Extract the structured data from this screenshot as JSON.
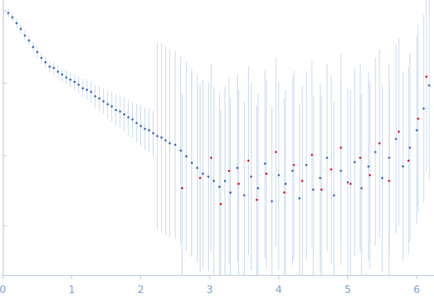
{
  "chart_data": {
    "type": "scatter",
    "title": "",
    "xlabel": "",
    "ylabel": "",
    "xlim": [
      0,
      6.25
    ],
    "ylim": [
      0,
      3.8
    ],
    "x_ticks": [
      0,
      1,
      2,
      3,
      4,
      5,
      6
    ],
    "x_tick_labels": [
      "0",
      "1",
      "2",
      "3",
      "4",
      "5",
      "6"
    ],
    "y_ticks": [
      0.68,
      1.65,
      2.65,
      3.65
    ],
    "y_tick_labels": [
      "",
      "",
      "",
      ""
    ],
    "grid": false,
    "legend": "none",
    "colors": {
      "primary_points": "#3d6fc4",
      "outlier_points": "#e02030",
      "error_bars": "#b8cbe6",
      "axis": "#aebfd8",
      "tick_labels": "#7a9fd0"
    },
    "series": [
      {
        "color": "#3d6fc4",
        "points": [
          [
            0.08,
            3.62
          ],
          [
            0.14,
            3.56
          ],
          [
            0.2,
            3.48
          ],
          [
            0.26,
            3.4
          ],
          [
            0.32,
            3.31
          ],
          [
            0.38,
            3.24
          ],
          [
            0.44,
            3.15
          ],
          [
            0.5,
            3.08
          ],
          [
            0.56,
            3.0
          ],
          [
            0.62,
            2.94
          ],
          [
            0.68,
            2.88
          ],
          [
            0.74,
            2.86
          ],
          [
            0.8,
            2.81
          ],
          [
            0.86,
            2.77
          ],
          [
            0.92,
            2.73
          ],
          [
            0.98,
            2.7
          ],
          [
            1.04,
            2.67
          ],
          [
            1.1,
            2.63
          ],
          [
            1.16,
            2.58
          ],
          [
            1.22,
            2.56
          ],
          [
            1.28,
            2.53
          ],
          [
            1.34,
            2.47
          ],
          [
            1.4,
            2.44
          ],
          [
            1.46,
            2.4
          ],
          [
            1.52,
            2.36
          ],
          [
            1.58,
            2.33
          ],
          [
            1.64,
            2.28
          ],
          [
            1.7,
            2.26
          ],
          [
            1.76,
            2.22
          ],
          [
            1.82,
            2.18
          ],
          [
            1.88,
            2.15
          ],
          [
            1.94,
            2.1
          ],
          [
            2.0,
            2.06
          ],
          [
            2.06,
            2.02
          ],
          [
            2.12,
            2.0
          ],
          [
            2.18,
            1.96
          ],
          [
            2.24,
            1.92
          ],
          [
            2.3,
            1.9
          ],
          [
            2.36,
            1.86
          ],
          [
            2.42,
            1.82
          ],
          [
            2.5,
            1.8
          ],
          [
            2.58,
            1.72
          ],
          [
            2.66,
            1.64
          ],
          [
            2.74,
            1.55
          ],
          [
            2.82,
            1.48
          ],
          [
            2.9,
            1.4
          ],
          [
            2.98,
            1.36
          ],
          [
            3.06,
            1.3
          ],
          [
            3.14,
            1.22
          ],
          [
            3.22,
            1.3
          ],
          [
            3.3,
            1.14
          ],
          [
            3.4,
            1.48
          ],
          [
            3.5,
            1.1
          ],
          [
            3.6,
            1.36
          ],
          [
            3.7,
            1.2
          ],
          [
            3.8,
            1.54
          ],
          [
            3.9,
            1.02
          ],
          [
            4.0,
            1.38
          ],
          [
            4.1,
            1.26
          ],
          [
            4.2,
            1.44
          ],
          [
            4.3,
            1.06
          ],
          [
            4.4,
            1.52
          ],
          [
            4.5,
            1.18
          ],
          [
            4.6,
            1.34
          ],
          [
            4.7,
            1.62
          ],
          [
            4.8,
            1.1
          ],
          [
            4.9,
            1.44
          ],
          [
            5.0,
            1.28
          ],
          [
            5.1,
            1.56
          ],
          [
            5.2,
            1.2
          ],
          [
            5.3,
            1.5
          ],
          [
            5.4,
            1.7
          ],
          [
            5.5,
            1.34
          ],
          [
            5.6,
            1.62
          ],
          [
            5.7,
            1.88
          ],
          [
            5.8,
            1.5
          ],
          [
            5.9,
            1.76
          ],
          [
            6.0,
            2.0
          ],
          [
            6.1,
            2.3
          ],
          [
            6.18,
            2.62
          ]
        ]
      },
      {
        "color": "#e02030",
        "points": [
          [
            2.6,
            1.2
          ],
          [
            2.86,
            1.34
          ],
          [
            3.02,
            1.62
          ],
          [
            3.16,
            0.98
          ],
          [
            3.28,
            1.44
          ],
          [
            3.42,
            1.26
          ],
          [
            3.56,
            1.58
          ],
          [
            3.68,
            1.04
          ],
          [
            3.82,
            1.4
          ],
          [
            3.96,
            1.7
          ],
          [
            4.08,
            1.14
          ],
          [
            4.22,
            1.52
          ],
          [
            4.34,
            1.3
          ],
          [
            4.48,
            1.66
          ],
          [
            4.62,
            1.18
          ],
          [
            4.76,
            1.46
          ],
          [
            4.9,
            1.76
          ],
          [
            5.04,
            1.26
          ],
          [
            5.18,
            1.62
          ],
          [
            5.32,
            1.38
          ],
          [
            5.46,
            1.82
          ],
          [
            5.6,
            1.3
          ],
          [
            5.74,
            1.98
          ],
          [
            5.88,
            1.58
          ],
          [
            6.02,
            2.16
          ],
          [
            6.14,
            2.74
          ]
        ]
      }
    ]
  }
}
